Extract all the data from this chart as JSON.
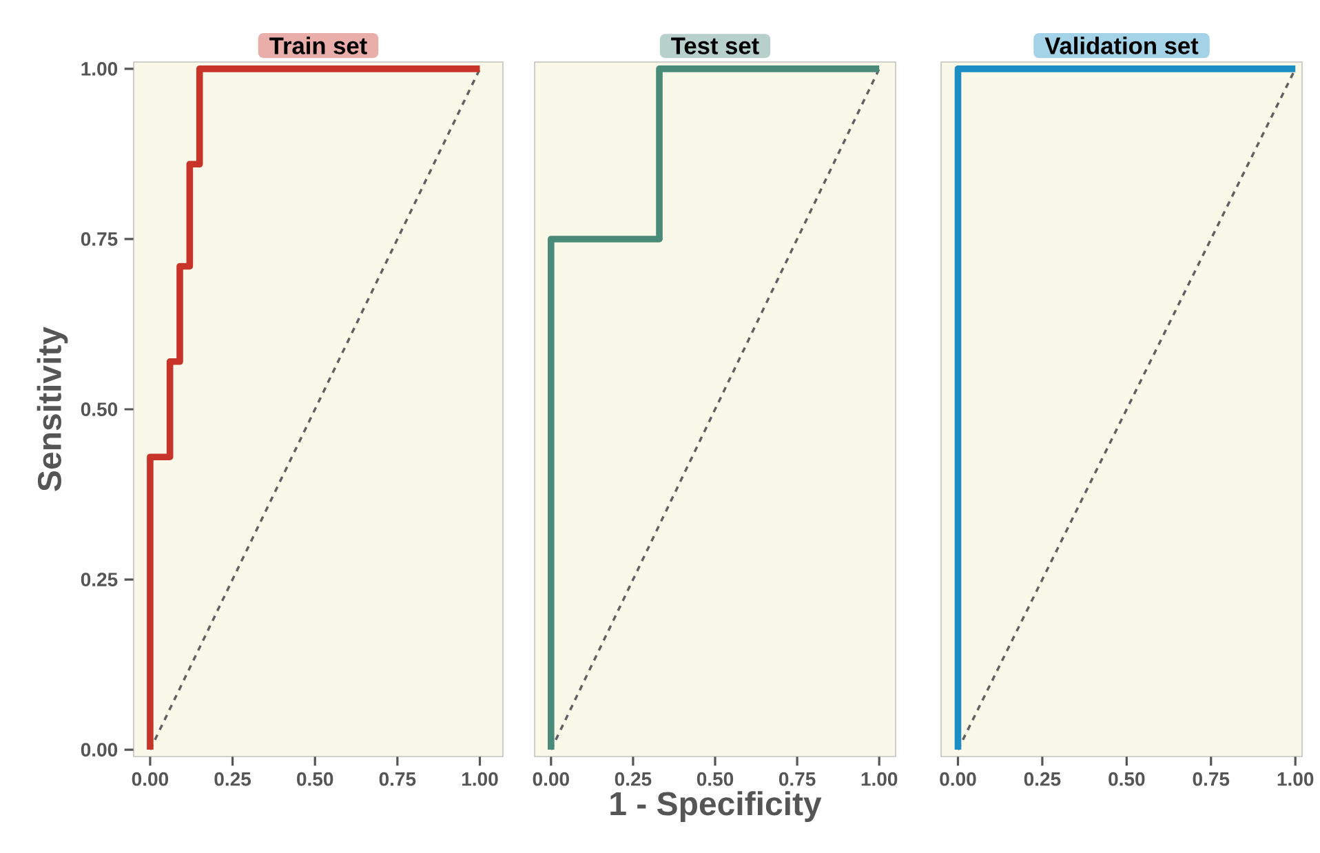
{
  "chart_data": [
    {
      "type": "step",
      "title": "Train set",
      "ylabel": "Sensitivity",
      "xlim": [
        -0.05,
        1.07
      ],
      "ylim": [
        -0.01,
        1.01
      ],
      "xticks": [
        {
          "value": 0,
          "label": "0.00"
        },
        {
          "value": 0.25,
          "label": "0.25"
        },
        {
          "value": 0.5,
          "label": "0.50"
        },
        {
          "value": 0.75,
          "label": "0.75"
        },
        {
          "value": 1,
          "label": "1.00"
        }
      ],
      "yticks": [
        {
          "value": 0,
          "label": "0.00"
        },
        {
          "value": 0.25,
          "label": "0.25"
        },
        {
          "value": 0.5,
          "label": "0.50"
        },
        {
          "value": 0.75,
          "label": "0.75"
        },
        {
          "value": 1,
          "label": "1.00"
        }
      ],
      "series": [
        {
          "color": "#c8332a",
          "line_style": "solid",
          "x": [
            0,
            0,
            0.06,
            0.09,
            0.12,
            0.15,
            1
          ],
          "values": [
            0,
            0.43,
            0.57,
            0.71,
            0.86,
            1,
            1
          ]
        },
        {
          "type": "line",
          "color": "#606060",
          "line_style": "dashed",
          "x": [
            0,
            1
          ],
          "values": [
            0,
            1
          ]
        }
      ]
    },
    {
      "type": "step",
      "title": "Test set",
      "xlabel": "1 - Specificity",
      "xlim": [
        -0.05,
        1.05
      ],
      "ylim": [
        -0.01,
        1.01
      ],
      "tick_labels": "x",
      "xticks": [
        {
          "value": 0,
          "label": "0.00"
        },
        {
          "value": 0.25,
          "label": "0.25"
        },
        {
          "value": 0.5,
          "label": "0.50"
        },
        {
          "value": 0.75,
          "label": "0.75"
        },
        {
          "value": 1,
          "label": "1.00"
        }
      ],
      "series": [
        {
          "color": "#4a8a78",
          "line_style": "solid",
          "x": [
            0,
            0,
            0.33,
            1
          ],
          "values": [
            0,
            0.75,
            1,
            1
          ]
        },
        {
          "type": "line",
          "color": "#606060",
          "line_style": "dashed",
          "x": [
            0,
            1
          ],
          "values": [
            0,
            1
          ]
        }
      ]
    },
    {
      "type": "step",
      "title": "Validation set",
      "xlim": [
        -0.05,
        1.02
      ],
      "ylim": [
        -0.01,
        1.01
      ],
      "tick_labels": "x",
      "xticks": [
        {
          "value": 0,
          "label": "0.00"
        },
        {
          "value": 0.25,
          "label": "0.25"
        },
        {
          "value": 0.5,
          "label": "0.50"
        },
        {
          "value": 0.75,
          "label": "0.75"
        },
        {
          "value": 1,
          "label": "1.00"
        }
      ],
      "series": [
        {
          "color": "#1b8fc4",
          "line_style": "solid",
          "x": [
            0,
            0,
            1
          ],
          "values": [
            0,
            1,
            1
          ]
        },
        {
          "type": "line",
          "color": "#606060",
          "line_style": "dashed",
          "x": [
            0,
            1
          ],
          "values": [
            0,
            1
          ]
        }
      ]
    }
  ]
}
